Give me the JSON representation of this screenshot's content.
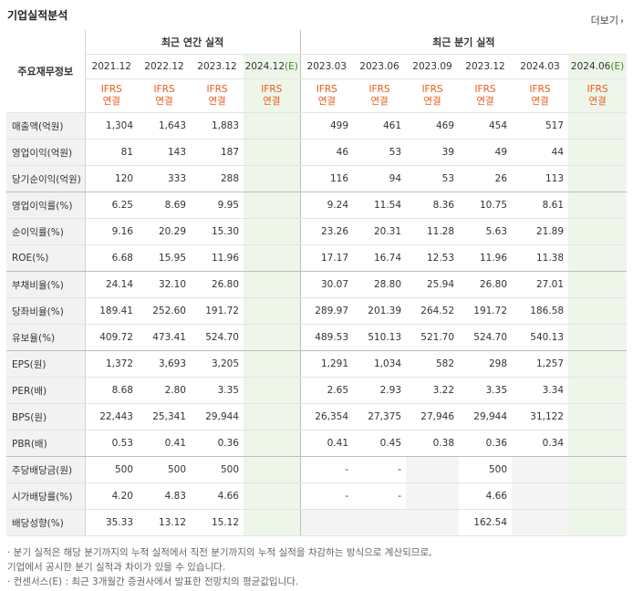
{
  "title": "기업실적분석",
  "more_label": "더보기",
  "label_header": "주요재무정보",
  "groups": {
    "annual": "최근 연간 실적",
    "quarterly": "최근 분기 실적"
  },
  "annual_periods": [
    "2021.12",
    "2022.12",
    "2023.12"
  ],
  "annual_estimate": {
    "period": "2024.12",
    "mark": "(E)"
  },
  "quarter_periods": [
    "2023.03",
    "2023.06",
    "2023.09",
    "2023.12",
    "2024.03"
  ],
  "quarter_estimate": {
    "period": "2024.06",
    "mark": "(E)"
  },
  "ifrs": {
    "line1": "IFRS",
    "line2": "연결"
  },
  "rows": [
    {
      "label": "매출액(억원)",
      "annual": [
        "1,304",
        "1,643",
        "1,883"
      ],
      "quarter": [
        "499",
        "461",
        "469",
        "454",
        "517"
      ]
    },
    {
      "label": "영업이익(억원)",
      "annual": [
        "81",
        "143",
        "187"
      ],
      "quarter": [
        "46",
        "53",
        "39",
        "49",
        "44"
      ]
    },
    {
      "label": "당기순이익(억원)",
      "annual": [
        "120",
        "333",
        "288"
      ],
      "quarter": [
        "116",
        "94",
        "53",
        "26",
        "113"
      ]
    },
    {
      "label": "영업이익률(%)",
      "annual": [
        "6.25",
        "8.69",
        "9.95"
      ],
      "quarter": [
        "9.24",
        "11.54",
        "8.36",
        "10.75",
        "8.61"
      ]
    },
    {
      "label": "순이익률(%)",
      "annual": [
        "9.16",
        "20.29",
        "15.30"
      ],
      "quarter": [
        "23.26",
        "20.31",
        "11.28",
        "5.63",
        "21.89"
      ]
    },
    {
      "label": "ROE(%)",
      "annual": [
        "6.68",
        "15.95",
        "11.96"
      ],
      "quarter": [
        "17.17",
        "16.74",
        "12.53",
        "11.96",
        "11.38"
      ]
    },
    {
      "label": "부채비율(%)",
      "annual": [
        "24.14",
        "32.10",
        "26.80"
      ],
      "quarter": [
        "30.07",
        "28.80",
        "25.94",
        "26.80",
        "27.01"
      ]
    },
    {
      "label": "당좌비율(%)",
      "annual": [
        "189.41",
        "252.60",
        "191.72"
      ],
      "quarter": [
        "289.97",
        "201.39",
        "264.52",
        "191.72",
        "186.58"
      ]
    },
    {
      "label": "유보율(%)",
      "annual": [
        "409.72",
        "473.41",
        "524.70"
      ],
      "quarter": [
        "489.53",
        "510.13",
        "521.70",
        "524.70",
        "540.13"
      ]
    },
    {
      "label": "EPS(원)",
      "annual": [
        "1,372",
        "3,693",
        "3,205"
      ],
      "quarter": [
        "1,291",
        "1,034",
        "582",
        "298",
        "1,257"
      ]
    },
    {
      "label": "PER(배)",
      "annual": [
        "8.68",
        "2.80",
        "3.35"
      ],
      "quarter": [
        "2.65",
        "2.93",
        "3.22",
        "3.35",
        "3.34"
      ]
    },
    {
      "label": "BPS(원)",
      "annual": [
        "22,443",
        "25,341",
        "29,944"
      ],
      "quarter": [
        "26,354",
        "27,375",
        "27,946",
        "29,944",
        "31,122"
      ]
    },
    {
      "label": "PBR(배)",
      "annual": [
        "0.53",
        "0.41",
        "0.36"
      ],
      "quarter": [
        "0.41",
        "0.45",
        "0.38",
        "0.36",
        "0.34"
      ]
    },
    {
      "label": "주당배당금(원)",
      "annual": [
        "500",
        "500",
        "500"
      ],
      "quarter": [
        "-",
        "-",
        "",
        "500",
        ""
      ]
    },
    {
      "label": "시가배당률(%)",
      "annual": [
        "4.20",
        "4.83",
        "4.66"
      ],
      "quarter": [
        "-",
        "-",
        "",
        "4.66",
        ""
      ]
    },
    {
      "label": "배당성향(%)",
      "annual": [
        "35.33",
        "13.12",
        "15.12"
      ],
      "quarter": [
        "",
        "",
        "",
        "162.54",
        ""
      ]
    }
  ],
  "notes": [
    "· 분기 실적은 해당 분기까지의 누적 실적에서 직전 분기까지의 누적 실적을 차감하는 방식으로 계산되므로,",
    "  기업에서 공시한 분기 실적과 차이가 있을 수 있습니다.",
    "· 컨센서스(E) : 최근 3개월간 증권사에서 발표한 전망치의 평균값입니다."
  ]
}
